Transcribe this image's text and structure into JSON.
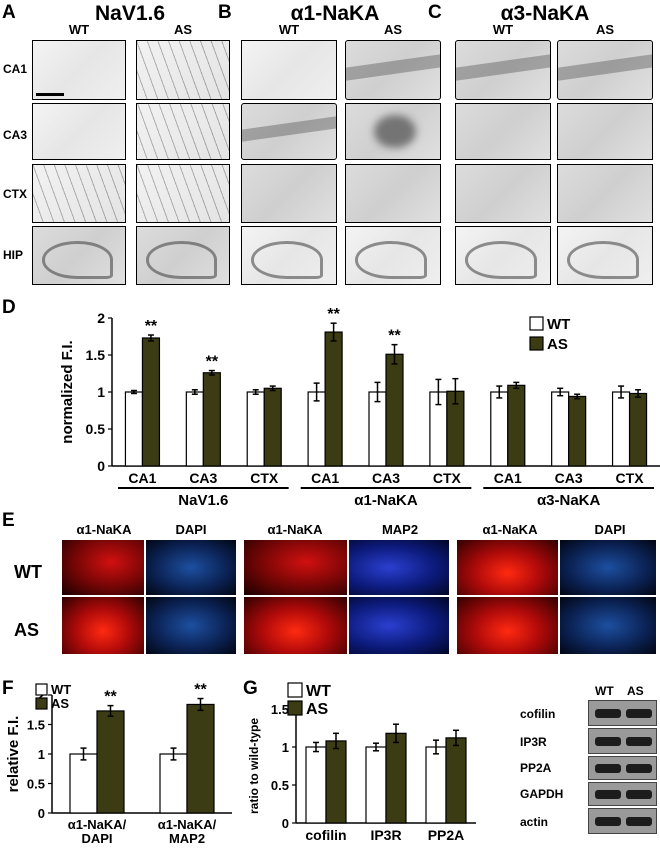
{
  "panel_letters": {
    "A": "A",
    "B": "B",
    "C": "C",
    "D": "D",
    "E": "E",
    "F": "F",
    "G": "G"
  },
  "section_titles": {
    "nav": "NaV1.6",
    "a1": "α1-NaKA",
    "a3": "α3-NaKA"
  },
  "columns": {
    "wt": "WT",
    "as": "AS"
  },
  "rows": {
    "ca1": "CA1",
    "ca3": "CA3",
    "ctx": "CTX",
    "hip": "HIP"
  },
  "panel_e": {
    "col_labels": [
      "α1-NaKA",
      "DAPI",
      "α1-NaKA",
      "MAP2",
      "α1-NaKA",
      "DAPI"
    ],
    "row_labels": [
      "WT",
      "AS"
    ]
  },
  "panel_g_blot": {
    "col_labels": [
      "WT",
      "AS"
    ],
    "row_labels": [
      "cofilin",
      "IP3R",
      "PP2A",
      "GAPDH",
      "actin"
    ]
  },
  "chart_data": [
    {
      "id": "D",
      "type": "bar",
      "ylabel": "normalized F.I.",
      "ylim": [
        0,
        2
      ],
      "yticks": [
        "0",
        "0.5",
        "1",
        "1.5",
        "2"
      ],
      "categories": [
        "CA1",
        "CA3",
        "CTX",
        "CA1",
        "CA3",
        "CTX",
        "CA1",
        "CA3",
        "CTX"
      ],
      "groups": [
        "NaV1.6",
        "α1-NaKA",
        "α3-NaKA"
      ],
      "series": [
        {
          "name": "WT",
          "color": "#ffffff",
          "values": [
            1.0,
            1.0,
            1.0,
            1.0,
            1.0,
            1.0,
            1.0,
            1.0,
            1.0
          ],
          "errors": [
            0.02,
            0.03,
            0.03,
            0.12,
            0.13,
            0.17,
            0.08,
            0.05,
            0.08
          ]
        },
        {
          "name": "AS",
          "color": "#3b3b14",
          "values": [
            1.73,
            1.26,
            1.05,
            1.81,
            1.51,
            1.01,
            1.09,
            0.94,
            0.98
          ],
          "errors": [
            0.04,
            0.03,
            0.03,
            0.12,
            0.13,
            0.17,
            0.04,
            0.03,
            0.05
          ]
        }
      ],
      "significance": [
        "**",
        "**",
        "",
        "**",
        "**",
        "",
        "",
        "",
        ""
      ],
      "legend_position": "top-right"
    },
    {
      "id": "F",
      "type": "bar",
      "ylabel": "relative F.I.",
      "ylim": [
        0,
        2
      ],
      "yticks": [
        "0",
        "0.5",
        "1",
        "1.5",
        "2"
      ],
      "categories": [
        "α1-NaKA/\nDAPI",
        "α1-NaKA/\nMAP2"
      ],
      "series": [
        {
          "name": "WT",
          "color": "#ffffff",
          "values": [
            1.0,
            1.0
          ],
          "errors": [
            0.1,
            0.1
          ]
        },
        {
          "name": "AS",
          "color": "#3b3b14",
          "values": [
            1.73,
            1.84
          ],
          "errors": [
            0.09,
            0.1
          ]
        }
      ],
      "significance": [
        "**",
        "**"
      ],
      "legend_position": "top-left"
    },
    {
      "id": "G",
      "type": "bar",
      "ylabel": "ratio to wild-type",
      "ylim": [
        0,
        1.5
      ],
      "yticks": [
        "0",
        "0.5",
        "1",
        "1.5"
      ],
      "categories": [
        "cofilin",
        "IP3R",
        "PP2A"
      ],
      "series": [
        {
          "name": "WT",
          "color": "#ffffff",
          "values": [
            1.0,
            1.0,
            1.0
          ],
          "errors": [
            0.06,
            0.05,
            0.09
          ]
        },
        {
          "name": "AS",
          "color": "#3b3b14",
          "values": [
            1.08,
            1.18,
            1.12
          ],
          "errors": [
            0.1,
            0.12,
            0.1
          ]
        }
      ],
      "significance": [
        "",
        "",
        ""
      ],
      "legend_position": "top-left"
    }
  ]
}
